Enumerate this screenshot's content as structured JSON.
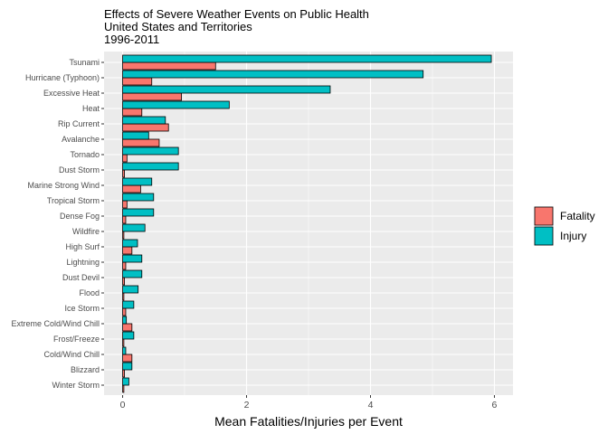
{
  "chart_data": {
    "type": "bar",
    "orientation": "horizontal",
    "title_lines": [
      "Effects of Severe Weather Events on Public Health",
      "United States and Territories",
      "1996-2011"
    ],
    "xlabel": "Mean Fatalities/Injuries per Event",
    "ylabel": "",
    "xlim": [
      -0.3,
      6.3
    ],
    "x_ticks": [
      0,
      2,
      4,
      6
    ],
    "x_tick_labels": [
      "0",
      "2",
      "4",
      "6"
    ],
    "grid": true,
    "legend_position": "right",
    "categories": [
      "Tsunami",
      "Hurricane (Typhoon)",
      "Excessive Heat",
      "Heat",
      "Rip Current",
      "Avalanche",
      "Tornado",
      "Dust Storm",
      "Marine Strong Wind",
      "Tropical Storm",
      "Dense Fog",
      "Wildfire",
      "High Surf",
      "Lightning",
      "Dust Devil",
      "Flood",
      "Ice Storm",
      "Extreme Cold/Wind Chill",
      "Frost/Freeze",
      "Cold/Wind Chill",
      "Blizzard",
      "Winter Storm"
    ],
    "series": [
      {
        "name": "Fatality",
        "color": "#F8766D",
        "values": [
          1.5,
          0.47,
          0.95,
          0.31,
          0.74,
          0.59,
          0.07,
          0.03,
          0.29,
          0.07,
          0.05,
          0.02,
          0.15,
          0.05,
          0.03,
          0.02,
          0.05,
          0.15,
          0.02,
          0.15,
          0.03,
          0.02
        ]
      },
      {
        "name": "Injury",
        "color": "#00BFC4",
        "values": [
          5.95,
          4.85,
          3.35,
          1.72,
          0.69,
          0.42,
          0.9,
          0.9,
          0.47,
          0.5,
          0.5,
          0.36,
          0.24,
          0.31,
          0.31,
          0.25,
          0.18,
          0.06,
          0.18,
          0.05,
          0.15,
          0.1
        ]
      }
    ]
  }
}
